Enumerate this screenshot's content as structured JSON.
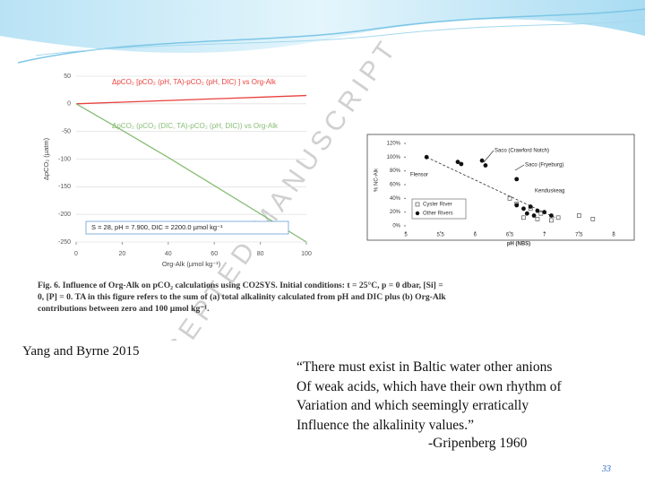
{
  "slide": {
    "citation": "Yang and Byrne 2015",
    "quote": [
      "“There must exist in Baltic water other anions",
      "Of weak acids, which have their own rhythm of",
      "Variation and which seemingly erratically",
      "Influence the alkalinity values.”"
    ],
    "attribution": "-Gripenberg 1960",
    "page_number": "33"
  },
  "figures": [
    {
      "type": "line",
      "watermark": "ACCEPTED MANUSCRIPT",
      "x_label": "Org-Alk (µmol kg⁻¹)",
      "y_label": "ΔpCO₂ (µatm)",
      "x": [
        0,
        20,
        40,
        60,
        80,
        100
      ],
      "series": [
        {
          "name": "ΔpCO₂ [pCO₂ (pH, TA)-pCO₂ (pH, DIC) ] vs Org-Alk",
          "color": "#e8413c",
          "values": [
            0,
            3,
            6,
            9,
            12,
            15
          ]
        },
        {
          "name": "ΔpCO₂ (pCO₂ (DIC, TA)-pCO₂ (pH, DIC)) vs Org-Alk",
          "color": "#86bd74",
          "values": [
            0,
            -48,
            -97,
            -148,
            -199,
            -250
          ]
        }
      ],
      "annotation": "S = 28, pH = 7.900, DIC = 2200.0 µmol kg⁻¹",
      "caption": "Fig. 6. Influence of Org-Alk on pCO₂ calculations using CO2SYS. Initial conditions: t = 25°C, p = 0 dbar, [Si] = 0, [P] = 0. TA in this figure refers to the sum of (a) total alkalinity calculated from pH and DIC plus (b) Org-Alk contributions between zero and 100 µmol kg⁻¹.",
      "xlim": [
        0,
        100
      ],
      "xticks": [
        0,
        20,
        40,
        60,
        80,
        100
      ],
      "ylim": [
        -250,
        50
      ],
      "yticks": [
        50,
        0,
        -50,
        -100,
        -150,
        -200,
        -250
      ]
    },
    {
      "type": "scatter",
      "x_label": "pH (NBS)",
      "y_label": "% NC-Alk",
      "series": [
        {
          "name": "Cysler River",
          "marker": "square",
          "color": "#555555",
          "x": [
            6.5,
            6.6,
            6.8,
            6.95,
            7.2,
            7.5,
            7.7,
            6.7,
            6.9,
            7.1
          ],
          "values": [
            40,
            32,
            25,
            18,
            12,
            15,
            10,
            12,
            10,
            8
          ]
        },
        {
          "name": "Other Rivers",
          "marker": "circle",
          "color": "#111111",
          "x": [
            5.3,
            5.75,
            5.8,
            6.1,
            6.15,
            6.6,
            6.6,
            6.8,
            6.9,
            7.0,
            6.7,
            6.75,
            7.1,
            6.85
          ],
          "values": [
            100,
            93,
            90,
            95,
            88,
            68,
            30,
            28,
            22,
            20,
            25,
            18,
            15,
            15
          ]
        }
      ],
      "trend": {
        "x": [
          5.3,
          7.2
        ],
        "values": [
          100,
          10
        ]
      },
      "annotations": [
        "Saco (Crawford Notch)",
        "Saco (Fryeburg)",
        "Flensor",
        "Kenduskeag"
      ],
      "xlim": [
        5,
        8
      ],
      "xticks": [
        5,
        5.5,
        6,
        6.5,
        7,
        7.5,
        8
      ],
      "ylim": [
        0,
        120
      ],
      "yticks": [
        {
          "value": 0,
          "label": "0%"
        },
        {
          "value": 20,
          "label": "20%"
        },
        {
          "value": 40,
          "label": "40%"
        },
        {
          "value": 60,
          "label": "60%"
        },
        {
          "value": 80,
          "label": "80%"
        },
        {
          "value": 100,
          "label": "100%"
        },
        {
          "value": 120,
          "label": "120%"
        }
      ]
    }
  ]
}
